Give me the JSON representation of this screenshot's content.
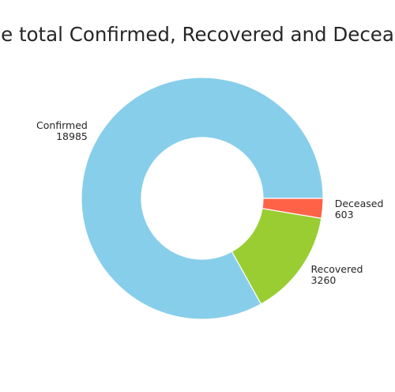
{
  "chart_data": {
    "type": "pie",
    "title": "e total Confirmed, Recovered and Decea",
    "donut": true,
    "categories": [
      "Confirmed",
      "Recovered",
      "Deceased"
    ],
    "values": [
      18985,
      3260,
      603
    ],
    "value_labels": [
      "18985",
      "3260",
      "603"
    ],
    "colors": [
      "#87ceeb",
      "#9acd32",
      "#ff6347"
    ],
    "start_angle_deg": 0,
    "direction": "counterclockwise",
    "legend": "none"
  }
}
